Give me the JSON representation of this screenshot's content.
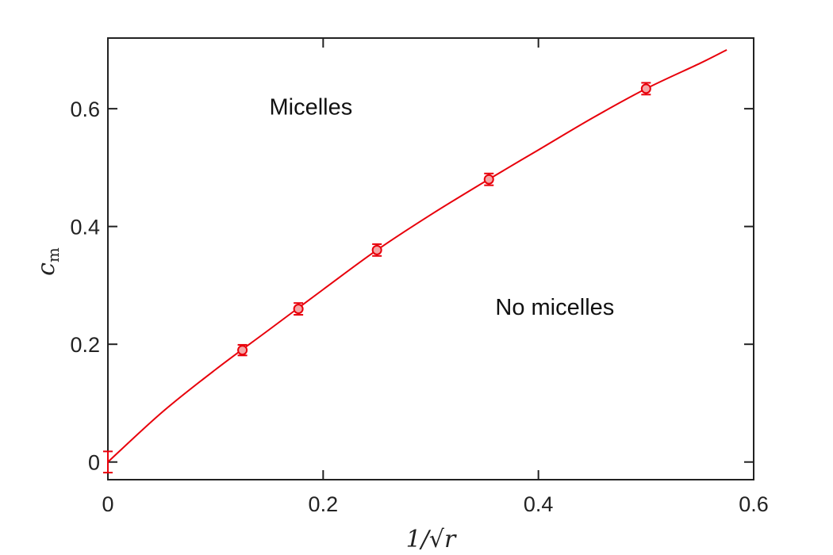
{
  "chart_data": {
    "type": "scatter",
    "xlabel": "1/√r",
    "ylabel": "c",
    "ylabel_sub": "m",
    "xlim": [
      0,
      0.6
    ],
    "ylim": [
      -0.03,
      0.72
    ],
    "xticks": [
      0,
      0.2,
      0.4,
      0.6
    ],
    "xtick_labels": [
      "0",
      "0.2",
      "0.4",
      "0.6"
    ],
    "yticks": [
      0,
      0.2,
      0.4,
      0.6
    ],
    "ytick_labels": [
      "0",
      "0.2",
      "0.4",
      "0.6"
    ],
    "grid": false,
    "annotations": [
      {
        "text": "Micelles",
        "x": 0.15,
        "y": 0.59
      },
      {
        "text": "No micelles",
        "x": 0.36,
        "y": 0.25
      }
    ],
    "series": [
      {
        "kind": "points",
        "x": [
          0.125,
          0.177,
          0.25,
          0.354,
          0.5
        ],
        "y": [
          0.19,
          0.26,
          0.36,
          0.48,
          0.634
        ],
        "err": [
          0.009,
          0.01,
          0.01,
          0.01,
          0.01
        ],
        "color": "#e8000b",
        "fill": "#f4a6a6"
      },
      {
        "kind": "errorbar-only",
        "x": [
          0
        ],
        "y": [
          0
        ],
        "err": [
          0.018
        ],
        "color": "#e8000b"
      },
      {
        "kind": "fit-line",
        "x": [
          0,
          0.05,
          0.1,
          0.15,
          0.2,
          0.25,
          0.3,
          0.35,
          0.4,
          0.45,
          0.5,
          0.55,
          0.575
        ],
        "y": [
          0,
          0.084,
          0.157,
          0.225,
          0.293,
          0.36,
          0.42,
          0.476,
          0.53,
          0.584,
          0.634,
          0.677,
          0.7
        ],
        "color": "#e8000b"
      }
    ]
  }
}
